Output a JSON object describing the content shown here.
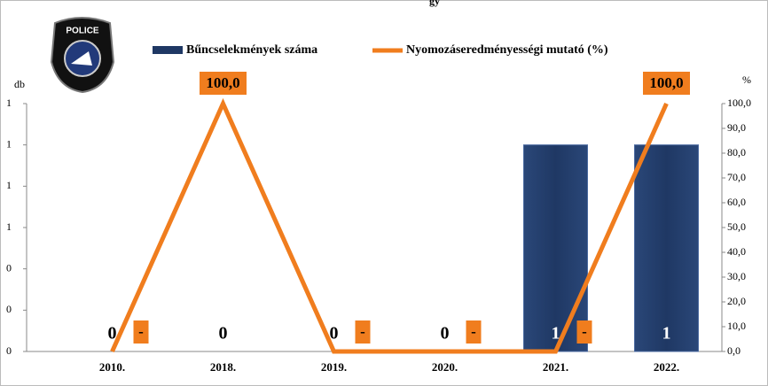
{
  "logo_text": "POLICE",
  "chart_data": {
    "type": "bar-line",
    "title": "gy",
    "y_label": "db",
    "y2_label": "%",
    "categories": [
      "2010.",
      "2018.",
      "2019.",
      "2020.",
      "2021.",
      "2022."
    ],
    "series": [
      {
        "name": "Bűncselekmények száma",
        "color": "#1f3864",
        "type": "bar",
        "values": [
          0,
          0,
          0,
          0,
          1,
          1
        ]
      },
      {
        "name": "Nyomozáseredményességi mutató (%)",
        "color": "#f07d1e",
        "type": "line",
        "axis": "y2",
        "values": [
          0,
          100,
          0,
          0,
          0,
          100
        ],
        "value_labels": [
          "-",
          "100,0",
          "-",
          "-",
          "-",
          "100,0"
        ]
      }
    ],
    "ylim": [
      0,
      1.2
    ],
    "yticks": [
      0,
      {
        "value": 0.2,
        "label": "0"
      },
      {
        "value": 0.4,
        "label": "0"
      },
      {
        "value": 0.6,
        "label": "1"
      },
      {
        "value": 0.8,
        "label": "1"
      },
      {
        "value": 1.0,
        "label": "1"
      },
      {
        "value": 1.2,
        "label": "1"
      }
    ],
    "y2lim": [
      0,
      100
    ],
    "y2ticks": [
      {
        "value": 0,
        "label": "0,0"
      },
      {
        "value": 10,
        "label": "10,0"
      },
      {
        "value": 20,
        "label": "20,0"
      },
      {
        "value": 30,
        "label": "30,0"
      },
      {
        "value": 40,
        "label": "40,0"
      },
      {
        "value": 50,
        "label": "50,0"
      },
      {
        "value": 60,
        "label": "60,0"
      },
      {
        "value": 70,
        "label": "70,0"
      },
      {
        "value": 80,
        "label": "80,0"
      },
      {
        "value": 90,
        "label": "90,0"
      },
      {
        "value": 100,
        "label": "100,0"
      }
    ]
  }
}
